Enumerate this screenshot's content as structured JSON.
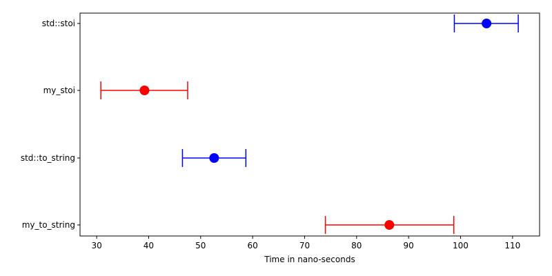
{
  "chart_data": {
    "type": "errorbar",
    "orientation": "horizontal",
    "title": "",
    "xlabel": "Time in nano-seconds",
    "ylabel": "",
    "xlim": [
      26.8,
      115.2
    ],
    "xticks": [
      30,
      40,
      50,
      60,
      70,
      80,
      90,
      100,
      110
    ],
    "grid": false,
    "categories": [
      "std::stoi",
      "my_stoi",
      "std::to_string",
      "my_to_string"
    ],
    "points": [
      {
        "category": "std::stoi",
        "value": 105.0,
        "low": 98.8,
        "high": 111.1,
        "color": "#0000ff"
      },
      {
        "category": "my_stoi",
        "value": 39.2,
        "low": 30.8,
        "high": 47.5,
        "color": "#ff0000"
      },
      {
        "category": "std::to_string",
        "value": 52.6,
        "low": 46.5,
        "high": 58.7,
        "color": "#0000ff"
      },
      {
        "category": "my_to_string",
        "value": 86.3,
        "low": 74.0,
        "high": 98.7,
        "color": "#ff0000"
      }
    ]
  }
}
